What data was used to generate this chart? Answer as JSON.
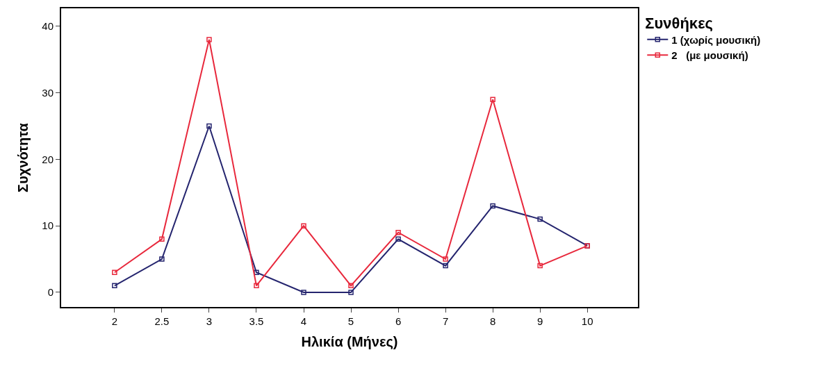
{
  "chart_data": {
    "type": "line",
    "xlabel": "Ηλικία (Μήνες)",
    "ylabel": "Συχνότητα",
    "legend_title": "Συνθήκες",
    "categories": [
      "2",
      "2.5",
      "3",
      "3.5",
      "4",
      "5",
      "6",
      "7",
      "8",
      "9",
      "10"
    ],
    "series": [
      {
        "name": "1 (χωρίς μουσική)",
        "color": "#24246e",
        "values": [
          1,
          5,
          25,
          3,
          0,
          0,
          8,
          4,
          13,
          11,
          7
        ]
      },
      {
        "name": "2   (με μουσική)",
        "color": "#e8283c",
        "values": [
          3,
          8,
          38,
          1,
          10,
          1,
          9,
          5,
          29,
          4,
          7
        ]
      }
    ],
    "ylim": [
      -2.2,
      42.7
    ],
    "yticks": [
      0,
      10,
      20,
      30,
      40
    ],
    "legend": "top right",
    "marker": "square",
    "line_style": "solid"
  }
}
